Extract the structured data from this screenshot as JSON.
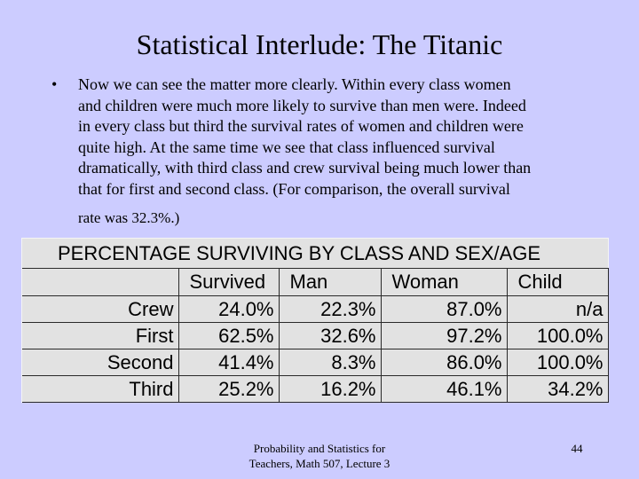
{
  "slide": {
    "title": "Statistical Interlude: The Titanic",
    "bullet_symbol": "•",
    "bullet_lines": [
      "Now we can see the matter more clearly. Within every class women",
      "and children were much more likely to survive than men were. Indeed",
      "in every class but third the survival rates of women and children were",
      "quite high. At the same time we see that class influenced survival",
      "dramatically, with third class and crew survival being much lower than",
      "that for first and second class. (For comparison, the overall survival",
      "rate was 32.3%.)"
    ]
  },
  "table": {
    "title": "PERCENTAGE SURVIVING BY CLASS AND SEX/AGE",
    "columns": [
      "Survived",
      "Man",
      "Woman",
      "Child"
    ],
    "rows": [
      {
        "label": "Crew",
        "values": [
          "24.0%",
          "22.3%",
          "87.0%",
          "n/a"
        ]
      },
      {
        "label": "First",
        "values": [
          "62.5%",
          "32.6%",
          "97.2%",
          "100.0%"
        ]
      },
      {
        "label": "Second",
        "values": [
          "41.4%",
          "8.3%",
          "86.0%",
          "100.0%"
        ]
      },
      {
        "label": "Third",
        "values": [
          "25.2%",
          "16.2%",
          "46.1%",
          "34.2%"
        ]
      }
    ]
  },
  "footer": {
    "line1": "Probability and Statistics for",
    "line2": "Teachers, Math 507, Lecture 3",
    "page_number": "44"
  }
}
